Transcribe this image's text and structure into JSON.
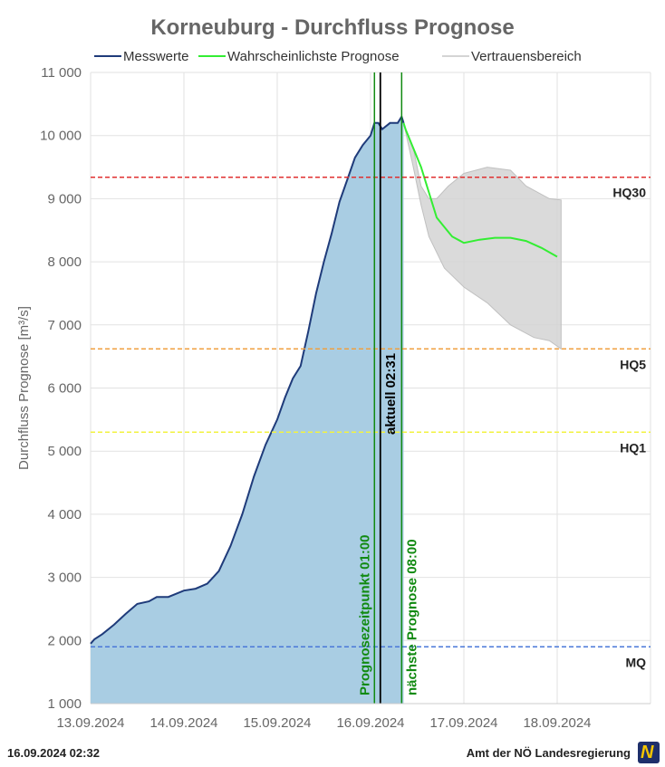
{
  "chart_data": {
    "type": "area",
    "title": "Korneuburg - Durchfluss Prognose",
    "ylabel": "Durchfluss Prognose [m³/s]",
    "xlabel": "",
    "ylim": [
      1000,
      11000
    ],
    "xlim": [
      "2024-09-13 00:00",
      "2024-09-19 00:00"
    ],
    "yticks": [
      1000,
      2000,
      3000,
      4000,
      5000,
      6000,
      7000,
      8000,
      9000,
      10000,
      11000
    ],
    "ytick_labels": [
      "1 000",
      "2 000",
      "3 000",
      "4 000",
      "5 000",
      "6 000",
      "7 000",
      "8 000",
      "9 000",
      "10 000",
      "11 000"
    ],
    "xticks": [
      "2024-09-13",
      "2024-09-14",
      "2024-09-15",
      "2024-09-16",
      "2024-09-17",
      "2024-09-18"
    ],
    "xtick_labels": [
      "13.09.2024",
      "14.09.2024",
      "15.09.2024",
      "16.09.2024",
      "17.09.2024",
      "18.09.2024"
    ],
    "grid": true,
    "legend_position": "top",
    "legend": [
      {
        "label": "Messwerte",
        "color": "#1f3b7a"
      },
      {
        "label": "Wahrscheinlichste Prognose",
        "color": "#33ee33"
      },
      {
        "label": "Vertrauensbereich",
        "color": "#d4d4d4"
      }
    ],
    "series": [
      {
        "name": "Messwerte",
        "color": "#1f3b7a",
        "fill": "#a9cde3",
        "points": [
          [
            "2024-09-13 00:00",
            1950
          ],
          [
            "2024-09-13 01:00",
            2020
          ],
          [
            "2024-09-13 03:00",
            2100
          ],
          [
            "2024-09-13 06:00",
            2250
          ],
          [
            "2024-09-13 09:00",
            2420
          ],
          [
            "2024-09-13 12:00",
            2580
          ],
          [
            "2024-09-13 15:00",
            2620
          ],
          [
            "2024-09-13 17:00",
            2690
          ],
          [
            "2024-09-13 20:00",
            2690
          ],
          [
            "2024-09-14 00:00",
            2790
          ],
          [
            "2024-09-14 03:00",
            2820
          ],
          [
            "2024-09-14 06:00",
            2900
          ],
          [
            "2024-09-14 09:00",
            3100
          ],
          [
            "2024-09-14 12:00",
            3500
          ],
          [
            "2024-09-14 15:00",
            4000
          ],
          [
            "2024-09-14 18:00",
            4600
          ],
          [
            "2024-09-14 21:00",
            5100
          ],
          [
            "2024-09-15 00:00",
            5500
          ],
          [
            "2024-09-15 02:00",
            5850
          ],
          [
            "2024-09-15 04:00",
            6150
          ],
          [
            "2024-09-15 06:00",
            6350
          ],
          [
            "2024-09-15 08:00",
            6900
          ],
          [
            "2024-09-15 10:00",
            7500
          ],
          [
            "2024-09-15 12:00",
            8000
          ],
          [
            "2024-09-15 14:00",
            8450
          ],
          [
            "2024-09-15 16:00",
            8950
          ],
          [
            "2024-09-15 18:00",
            9300
          ],
          [
            "2024-09-15 20:00",
            9650
          ],
          [
            "2024-09-15 22:00",
            9850
          ],
          [
            "2024-09-16 00:00",
            10000
          ],
          [
            "2024-09-16 01:00",
            10200
          ],
          [
            "2024-09-16 02:00",
            10200
          ],
          [
            "2024-09-16 03:00",
            10100
          ],
          [
            "2024-09-16 05:00",
            10200
          ],
          [
            "2024-09-16 07:00",
            10200
          ],
          [
            "2024-09-16 08:00",
            10300
          ],
          [
            "2024-09-16 08:30",
            10200
          ]
        ]
      },
      {
        "name": "Wahrscheinlichste Prognose",
        "color": "#33ee33",
        "points": [
          [
            "2024-09-16 08:30",
            10200
          ],
          [
            "2024-09-16 09:00",
            10100
          ],
          [
            "2024-09-16 11:00",
            9800
          ],
          [
            "2024-09-16 13:00",
            9500
          ],
          [
            "2024-09-16 15:00",
            9100
          ],
          [
            "2024-09-16 17:00",
            8700
          ],
          [
            "2024-09-16 19:00",
            8550
          ],
          [
            "2024-09-16 21:00",
            8400
          ],
          [
            "2024-09-17 00:00",
            8300
          ],
          [
            "2024-09-17 04:00",
            8350
          ],
          [
            "2024-09-17 08:00",
            8380
          ],
          [
            "2024-09-17 12:00",
            8380
          ],
          [
            "2024-09-17 16:00",
            8330
          ],
          [
            "2024-09-17 20:00",
            8220
          ],
          [
            "2024-09-18 00:00",
            8080
          ]
        ]
      },
      {
        "name": "Vertrauensbereich",
        "color": "#d4d4d4",
        "upper": [
          [
            "2024-09-16 08:30",
            10200
          ],
          [
            "2024-09-16 11:00",
            9800
          ],
          [
            "2024-09-16 13:00",
            9200
          ],
          [
            "2024-09-16 15:00",
            9000
          ],
          [
            "2024-09-16 17:00",
            9000
          ],
          [
            "2024-09-16 20:00",
            9200
          ],
          [
            "2024-09-17 00:00",
            9400
          ],
          [
            "2024-09-17 06:00",
            9500
          ],
          [
            "2024-09-17 12:00",
            9450
          ],
          [
            "2024-09-17 16:00",
            9200
          ],
          [
            "2024-09-17 22:00",
            9000
          ],
          [
            "2024-09-18 01:00",
            8980
          ]
        ],
        "lower": [
          [
            "2024-09-16 08:30",
            10200
          ],
          [
            "2024-09-16 11:00",
            9500
          ],
          [
            "2024-09-16 13:00",
            8900
          ],
          [
            "2024-09-16 15:00",
            8400
          ],
          [
            "2024-09-16 19:00",
            7900
          ],
          [
            "2024-09-17 00:00",
            7600
          ],
          [
            "2024-09-17 06:00",
            7350
          ],
          [
            "2024-09-17 12:00",
            7000
          ],
          [
            "2024-09-17 18:00",
            6800
          ],
          [
            "2024-09-17 22:00",
            6750
          ],
          [
            "2024-09-18 01:00",
            6620
          ]
        ]
      }
    ],
    "thresholds": [
      {
        "label": "HQ30",
        "value": 9340,
        "color": "#e03030"
      },
      {
        "label": "HQ5",
        "value": 6620,
        "color": "#f0a040"
      },
      {
        "label": "HQ1",
        "value": 5300,
        "color": "#f2f240"
      },
      {
        "label": "MQ",
        "value": 1900,
        "color": "#4a78d8"
      }
    ],
    "vertical_markers": [
      {
        "label": "Prognosezeitpunkt 01:00",
        "time": "2024-09-16 01:00",
        "color": "#118a11"
      },
      {
        "label": "aktuell 02:31",
        "time": "2024-09-16 02:31",
        "color": "#000000"
      },
      {
        "label": "nächste Prognose 08:00",
        "time": "2024-09-16 08:00",
        "color": "#118a11"
      }
    ]
  },
  "footer": {
    "timestamp": "16.09.2024 02:32",
    "source": "Amt der NÖ Landesregierung"
  }
}
